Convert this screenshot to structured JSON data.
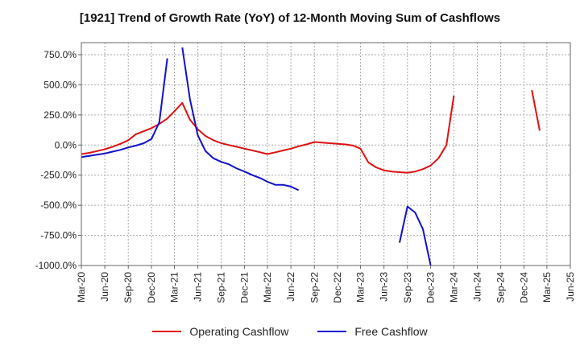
{
  "chart_data": {
    "type": "line",
    "title": "[1921]  Trend of Growth Rate (YoY) of 12-Month Moving Sum of Cashflows",
    "x_tick_labels": [
      "Mar-20",
      "Jun-20",
      "Sep-20",
      "Dec-20",
      "Mar-21",
      "Jun-21",
      "Sep-21",
      "Dec-21",
      "Mar-22",
      "Jun-22",
      "Sep-22",
      "Dec-22",
      "Mar-23",
      "Jun-23",
      "Sep-23",
      "Dec-23",
      "Mar-24",
      "Jun-24",
      "Sep-24",
      "Dec-24",
      "Mar-25",
      "Jun-25"
    ],
    "y_tick_labels": [
      "750.0%",
      "500.0%",
      "250.0%",
      "0.0%",
      "-250.0%",
      "-500.0%",
      "-750.0%",
      "-1000.0%"
    ],
    "y_ticks": [
      750,
      500,
      250,
      0,
      -250,
      -500,
      -750,
      -1000
    ],
    "ylim": [
      -1000,
      850
    ],
    "grid": true,
    "legend_position": "bottom",
    "series": [
      {
        "name": "Operating Cashflow",
        "color": "#dd1111",
        "points": [
          [
            "2020-03",
            -75
          ],
          [
            "2020-04",
            -65
          ],
          [
            "2020-05",
            -50
          ],
          [
            "2020-06",
            -35
          ],
          [
            "2020-07",
            -15
          ],
          [
            "2020-08",
            10
          ],
          [
            "2020-09",
            40
          ],
          [
            "2020-10",
            90
          ],
          [
            "2020-11",
            115
          ],
          [
            "2020-12",
            140
          ],
          [
            "2021-01",
            175
          ],
          [
            "2021-02",
            220
          ],
          [
            "2021-03",
            280
          ],
          [
            "2021-04",
            350
          ],
          [
            "2021-05",
            210
          ],
          [
            "2021-06",
            130
          ],
          [
            "2021-07",
            75
          ],
          [
            "2021-08",
            40
          ],
          [
            "2021-09",
            15
          ],
          [
            "2021-10",
            0
          ],
          [
            "2021-11",
            -15
          ],
          [
            "2021-12",
            -30
          ],
          [
            "2022-01",
            -45
          ],
          [
            "2022-02",
            -60
          ],
          [
            "2022-03",
            -75
          ],
          [
            "2022-04",
            -60
          ],
          [
            "2022-05",
            -45
          ],
          [
            "2022-06",
            -30
          ],
          [
            "2022-07",
            -10
          ],
          [
            "2022-08",
            5
          ],
          [
            "2022-09",
            25
          ],
          [
            "2022-10",
            20
          ],
          [
            "2022-11",
            15
          ],
          [
            "2022-12",
            10
          ],
          [
            "2023-01",
            5
          ],
          [
            "2023-02",
            -5
          ],
          [
            "2023-03",
            -30
          ],
          [
            "2023-04",
            -145
          ],
          [
            "2023-05",
            -185
          ],
          [
            "2023-06",
            -210
          ],
          [
            "2023-07",
            -220
          ],
          [
            "2023-08",
            -225
          ],
          [
            "2023-09",
            -230
          ],
          [
            "2023-10",
            -220
          ],
          [
            "2023-11",
            -200
          ],
          [
            "2023-12",
            -170
          ],
          [
            "2024-01",
            -110
          ],
          [
            "2024-02",
            0
          ],
          [
            "2024-03",
            410
          ],
          null,
          [
            "2025-01",
            455
          ],
          [
            "2025-02",
            120
          ]
        ]
      },
      {
        "name": "Free Cashflow",
        "color": "#1111cc",
        "points": [
          [
            "2020-03",
            -100
          ],
          [
            "2020-04",
            -90
          ],
          [
            "2020-05",
            -80
          ],
          [
            "2020-06",
            -70
          ],
          [
            "2020-07",
            -55
          ],
          [
            "2020-08",
            -40
          ],
          [
            "2020-09",
            -20
          ],
          [
            "2020-10",
            -5
          ],
          [
            "2020-11",
            15
          ],
          [
            "2020-12",
            50
          ],
          [
            "2021-01",
            190
          ],
          [
            "2021-02",
            720
          ],
          null,
          [
            "2021-04",
            810
          ],
          [
            "2021-05",
            380
          ],
          [
            "2021-06",
            80
          ],
          [
            "2021-07",
            -50
          ],
          [
            "2021-08",
            -110
          ],
          [
            "2021-09",
            -140
          ],
          [
            "2021-10",
            -160
          ],
          [
            "2021-11",
            -195
          ],
          [
            "2021-12",
            -220
          ],
          [
            "2022-01",
            -250
          ],
          [
            "2022-02",
            -275
          ],
          [
            "2022-03",
            -305
          ],
          [
            "2022-04",
            -330
          ],
          [
            "2022-05",
            -330
          ],
          [
            "2022-06",
            -345
          ],
          [
            "2022-07",
            -375
          ],
          null,
          [
            "2023-08",
            -810
          ],
          [
            "2023-09",
            -510
          ],
          [
            "2023-10",
            -560
          ],
          [
            "2023-11",
            -700
          ],
          [
            "2023-12",
            -1000
          ]
        ]
      }
    ]
  }
}
